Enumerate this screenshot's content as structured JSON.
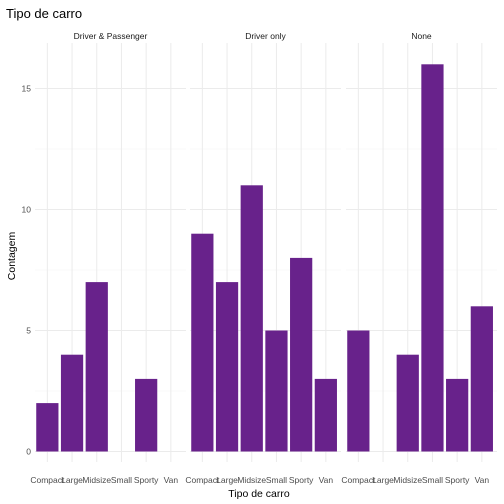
{
  "chart_data": {
    "type": "bar",
    "title": "Tipo de carro",
    "xlabel": "Tipo de carro",
    "ylabel": "Contagem",
    "categories": [
      "Compact",
      "Large",
      "Midsize",
      "Small",
      "Sporty",
      "Van"
    ],
    "ylim": [
      0,
      16.5
    ],
    "yticks": [
      0,
      5,
      10,
      15
    ],
    "grid": true,
    "bar_color": "#68228B",
    "facets": [
      {
        "name": "Driver & Passenger",
        "values": [
          2,
          4,
          7,
          0,
          3,
          0
        ]
      },
      {
        "name": "Driver only",
        "values": [
          9,
          7,
          11,
          5,
          8,
          3
        ]
      },
      {
        "name": "None",
        "values": [
          5,
          0,
          4,
          16,
          3,
          6
        ]
      }
    ]
  }
}
